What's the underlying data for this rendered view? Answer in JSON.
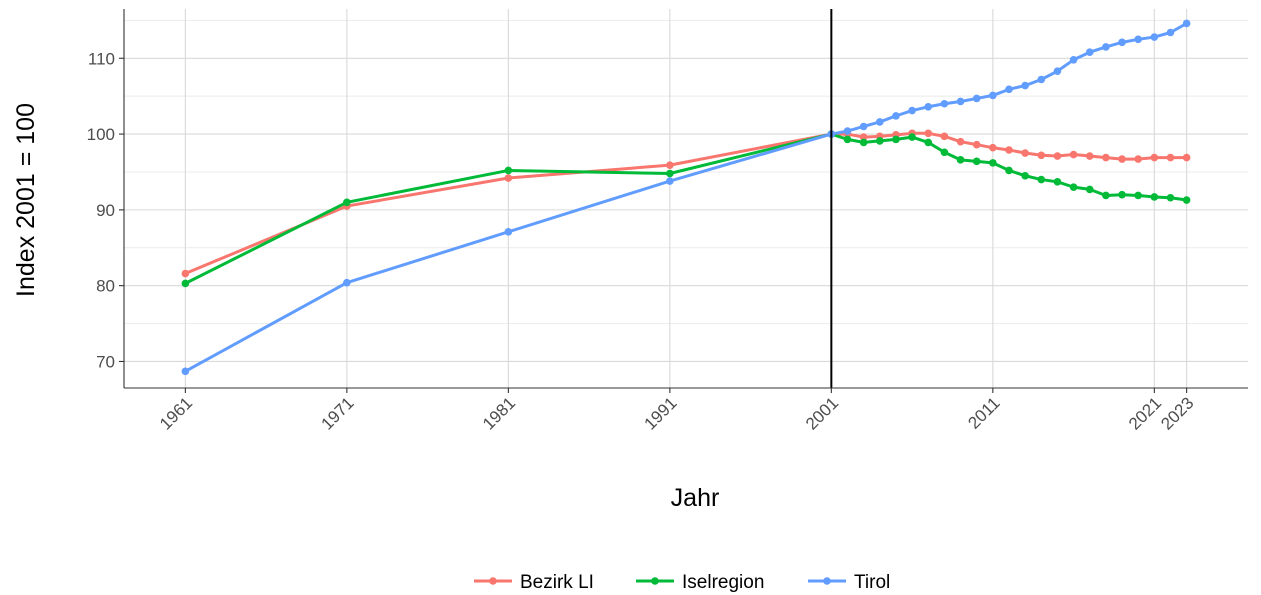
{
  "chart_data": {
    "type": "line",
    "xlabel": "Jahr",
    "ylabel": "Index 2001 = 100",
    "ylim": [
      66.5,
      116.5
    ],
    "xlim": [
      1957.2,
      2026.8
    ],
    "y_ticks": [
      70,
      80,
      90,
      100,
      110
    ],
    "y_tick_labels": [
      "70",
      "80",
      "90",
      "100",
      "110"
    ],
    "x_ticks": [
      1961,
      1971,
      1981,
      1991,
      2001,
      2011,
      2021,
      2023
    ],
    "x_tick_labels": [
      "1961",
      "1971",
      "1981",
      "1991",
      "2001",
      "2011",
      "2021",
      "2023"
    ],
    "vline_x": 2001,
    "grid": true,
    "legend_position": "bottom",
    "series": [
      {
        "name": "Bezirk LI",
        "color": "#F8766D",
        "points": [
          [
            1961,
            81.6
          ],
          [
            1971,
            90.5
          ],
          [
            1981,
            94.2
          ],
          [
            1991,
            95.9
          ],
          [
            2001,
            100.0
          ],
          [
            2002,
            100.0
          ],
          [
            2003,
            99.6
          ],
          [
            2004,
            99.7
          ],
          [
            2005,
            99.9
          ],
          [
            2006,
            100.1
          ],
          [
            2007,
            100.1
          ],
          [
            2008,
            99.7
          ],
          [
            2009,
            99.0
          ],
          [
            2010,
            98.6
          ],
          [
            2011,
            98.2
          ],
          [
            2012,
            97.9
          ],
          [
            2013,
            97.5
          ],
          [
            2014,
            97.2
          ],
          [
            2015,
            97.1
          ],
          [
            2016,
            97.3
          ],
          [
            2017,
            97.1
          ],
          [
            2018,
            96.9
          ],
          [
            2019,
            96.7
          ],
          [
            2020,
            96.7
          ],
          [
            2021,
            96.9
          ],
          [
            2022,
            96.9
          ],
          [
            2023,
            96.9
          ]
        ]
      },
      {
        "name": "Iselregion",
        "color": "#00BA38",
        "points": [
          [
            1961,
            80.3
          ],
          [
            1971,
            91.0
          ],
          [
            1981,
            95.2
          ],
          [
            1991,
            94.8
          ],
          [
            2001,
            100.0
          ],
          [
            2002,
            99.3
          ],
          [
            2003,
            98.9
          ],
          [
            2004,
            99.1
          ],
          [
            2005,
            99.3
          ],
          [
            2006,
            99.6
          ],
          [
            2007,
            98.9
          ],
          [
            2008,
            97.6
          ],
          [
            2009,
            96.6
          ],
          [
            2010,
            96.4
          ],
          [
            2011,
            96.2
          ],
          [
            2012,
            95.2
          ],
          [
            2013,
            94.5
          ],
          [
            2014,
            94.0
          ],
          [
            2015,
            93.7
          ],
          [
            2016,
            93.0
          ],
          [
            2017,
            92.7
          ],
          [
            2018,
            91.9
          ],
          [
            2019,
            92.0
          ],
          [
            2020,
            91.9
          ],
          [
            2021,
            91.7
          ],
          [
            2022,
            91.6
          ],
          [
            2023,
            91.3
          ]
        ]
      },
      {
        "name": "Tirol",
        "color": "#619CFF",
        "points": [
          [
            1961,
            68.7
          ],
          [
            1971,
            80.4
          ],
          [
            1981,
            87.1
          ],
          [
            1991,
            93.8
          ],
          [
            2001,
            100.0
          ],
          [
            2002,
            100.4
          ],
          [
            2003,
            101.0
          ],
          [
            2004,
            101.6
          ],
          [
            2005,
            102.4
          ],
          [
            2006,
            103.1
          ],
          [
            2007,
            103.6
          ],
          [
            2008,
            104.0
          ],
          [
            2009,
            104.3
          ],
          [
            2010,
            104.7
          ],
          [
            2011,
            105.1
          ],
          [
            2012,
            105.9
          ],
          [
            2013,
            106.4
          ],
          [
            2014,
            107.2
          ],
          [
            2015,
            108.3
          ],
          [
            2016,
            109.8
          ],
          [
            2017,
            110.8
          ],
          [
            2018,
            111.5
          ],
          [
            2019,
            112.1
          ],
          [
            2020,
            112.5
          ],
          [
            2021,
            112.8
          ],
          [
            2022,
            113.4
          ],
          [
            2023,
            114.6
          ]
        ]
      }
    ]
  }
}
